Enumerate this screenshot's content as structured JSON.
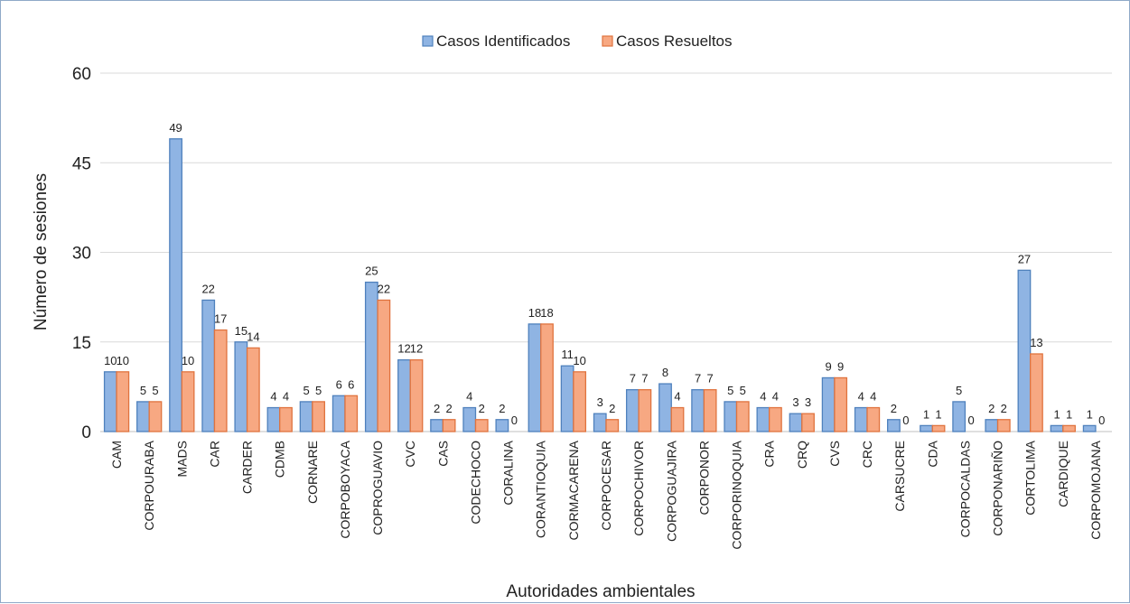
{
  "chart_data": {
    "type": "bar",
    "title": "",
    "xlabel": "Autoridades ambientales",
    "ylabel": "Número de sesiones",
    "ylim": [
      0,
      60
    ],
    "yticks": [
      0,
      15,
      30,
      45,
      60
    ],
    "grid": true,
    "legend_position": "top-center",
    "categories": [
      "CAM",
      "CORPOURABA",
      "MADS",
      "CAR",
      "CARDER",
      "CDMB",
      "CORNARE",
      "CORPOBOYACA",
      "COPROGUAVIO",
      "CVC",
      "CAS",
      "CODECHOCO",
      "CORALINA",
      "CORANTIOQUIA",
      "CORMACARENA",
      "CORPOCESAR",
      "CORPOCHIVOR",
      "CORPOGUAJIRA",
      "CORPONOR",
      "CORPORINOQUIA",
      "CRA",
      "CRQ",
      "CVS",
      "CRC",
      "CARSUCRE",
      "CDA",
      "CORPOCALDAS",
      "CORPONARIÑO",
      "CORTOLIMA",
      "CARDIQUE",
      "CORPOMOJANA"
    ],
    "series": [
      {
        "name": "Casos Identificados",
        "color": "#8fb4e3",
        "stroke": "#4f81bd",
        "values": [
          10,
          5,
          49,
          22,
          15,
          4,
          5,
          6,
          25,
          12,
          2,
          4,
          2,
          18,
          11,
          3,
          7,
          8,
          7,
          5,
          4,
          3,
          9,
          4,
          2,
          1,
          5,
          2,
          27,
          1,
          1
        ]
      },
      {
        "name": "Casos Resueltos",
        "color": "#f7a882",
        "stroke": "#e0733e",
        "values": [
          10,
          5,
          10,
          17,
          14,
          4,
          5,
          6,
          22,
          12,
          2,
          2,
          0,
          18,
          10,
          2,
          7,
          4,
          7,
          5,
          4,
          3,
          9,
          4,
          0,
          1,
          0,
          2,
          13,
          1,
          0
        ]
      }
    ]
  }
}
